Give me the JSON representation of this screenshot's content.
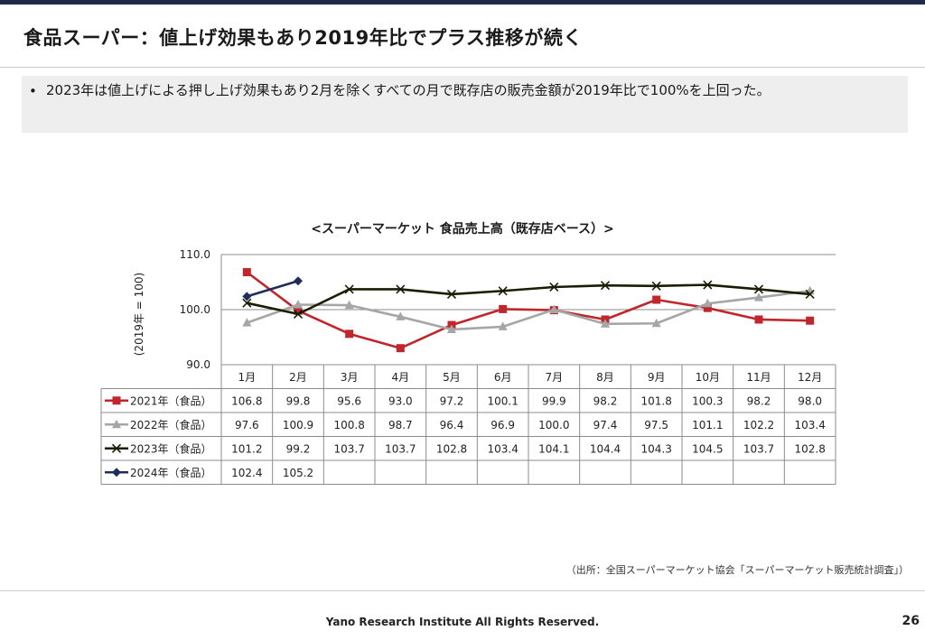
{
  "slide": {
    "title": "食品スーパー：値上げ効果もあり2019年比でプラス推移が続く",
    "bullet_marker": "•",
    "bullet": "2023年は値上げによる押し上げ効果もあり2月を除くすべての月で既存店の販売金額が2019年比で100%を上回った。",
    "source": "（出所：全国スーパーマーケット協会「スーパーマーケット販売統計調査」）",
    "footer": "Yano Research Institute All Rights Reserved.",
    "page_number": "26"
  },
  "chart_data": {
    "type": "line",
    "title": "<スーパーマーケット  食品売上高（既存店ベース）>",
    "ylabel": "(2019年 = 100)",
    "ylim": [
      90,
      110
    ],
    "yticks": [
      "90.0",
      "100.0",
      "110.0"
    ],
    "grid": true,
    "legend": "data-table",
    "categories": [
      "1月",
      "2月",
      "3月",
      "4月",
      "5月",
      "6月",
      "7月",
      "8月",
      "9月",
      "10月",
      "11月",
      "12月"
    ],
    "series": [
      {
        "name": "2021年（食品）",
        "color": "#c0272d",
        "marker": "square",
        "values": [
          106.8,
          99.8,
          95.6,
          93.0,
          97.2,
          100.1,
          99.9,
          98.2,
          101.8,
          100.3,
          98.2,
          98.0
        ],
        "labels": [
          "106.8",
          "99.8",
          "95.6",
          "93.0",
          "97.2",
          "100.1",
          "99.9",
          "98.2",
          "101.8",
          "100.3",
          "98.2",
          "98.0"
        ]
      },
      {
        "name": "2022年（食品）",
        "color": "#a6a6a6",
        "marker": "triangle",
        "values": [
          97.6,
          100.9,
          100.8,
          98.7,
          96.4,
          96.9,
          100.0,
          97.4,
          97.5,
          101.1,
          102.2,
          103.4
        ],
        "labels": [
          "97.6",
          "100.9",
          "100.8",
          "98.7",
          "96.4",
          "96.9",
          "100.0",
          "97.4",
          "97.5",
          "101.1",
          "102.2",
          "103.4"
        ]
      },
      {
        "name": "2023年（食品）",
        "color": "#1c1c00",
        "marker": "x",
        "values": [
          101.2,
          99.2,
          103.7,
          103.7,
          102.8,
          103.4,
          104.1,
          104.4,
          104.3,
          104.5,
          103.7,
          102.8
        ],
        "labels": [
          "101.2",
          "99.2",
          "103.7",
          "103.7",
          "102.8",
          "103.4",
          "104.1",
          "104.4",
          "104.3",
          "104.5",
          "103.7",
          "102.8"
        ]
      },
      {
        "name": "2024年（食品）",
        "color": "#1f2d5c",
        "marker": "diamond",
        "values": [
          102.4,
          105.2,
          null,
          null,
          null,
          null,
          null,
          null,
          null,
          null,
          null,
          null
        ],
        "labels": [
          "102.4",
          "105.2",
          "",
          "",
          "",
          "",
          "",
          "",
          "",
          "",
          "",
          ""
        ]
      }
    ]
  }
}
